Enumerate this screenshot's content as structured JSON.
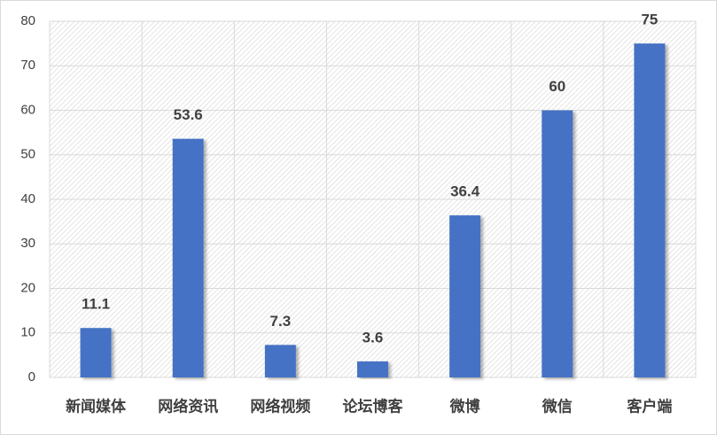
{
  "chart_data": {
    "type": "bar",
    "categories": [
      "新闻媒体",
      "网络资讯",
      "网络视频",
      "论坛博客",
      "微博",
      "微信",
      "客户端"
    ],
    "values": [
      11.1,
      53.6,
      7.3,
      3.6,
      36.4,
      60,
      75
    ],
    "color": "#4472c4",
    "ylim": [
      0,
      80
    ],
    "yticks": [
      0,
      10,
      20,
      30,
      40,
      50,
      60,
      70,
      80
    ],
    "grid": true
  }
}
